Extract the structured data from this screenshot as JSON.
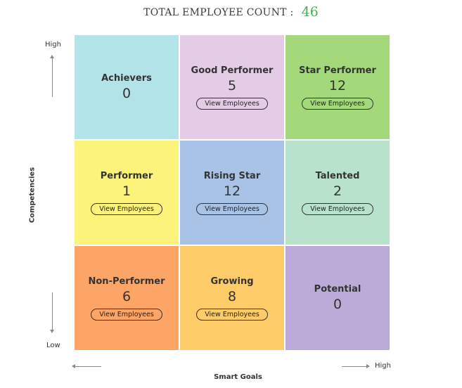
{
  "header": {
    "label": "TOTAL EMPLOYEE COUNT :",
    "count": "46"
  },
  "y_axis": {
    "high": "High",
    "low": "Low",
    "title": "Competencies"
  },
  "x_axis": {
    "high": "High",
    "title": "Smart Goals"
  },
  "view_label": "View Employees",
  "cells": [
    {
      "title": "Achievers",
      "count": "0",
      "color": "#b2e3e8",
      "has_button": false
    },
    {
      "title": "Good Performer",
      "count": "5",
      "color": "#e4cce6",
      "has_button": true
    },
    {
      "title": "Star Performer",
      "count": "12",
      "color": "#a3d97b",
      "has_button": true
    },
    {
      "title": "Performer",
      "count": "1",
      "color": "#fbf37a",
      "has_button": true
    },
    {
      "title": "Rising Star",
      "count": "12",
      "color": "#a9c3e6",
      "has_button": true
    },
    {
      "title": "Talented",
      "count": "2",
      "color": "#b8e2cc",
      "has_button": true
    },
    {
      "title": "Non-Performer",
      "count": "6",
      "color": "#fda467",
      "has_button": true
    },
    {
      "title": "Growing",
      "count": "8",
      "color": "#fecb69",
      "has_button": true
    },
    {
      "title": "Potential",
      "count": "0",
      "color": "#bcaad8",
      "has_button": false
    }
  ]
}
